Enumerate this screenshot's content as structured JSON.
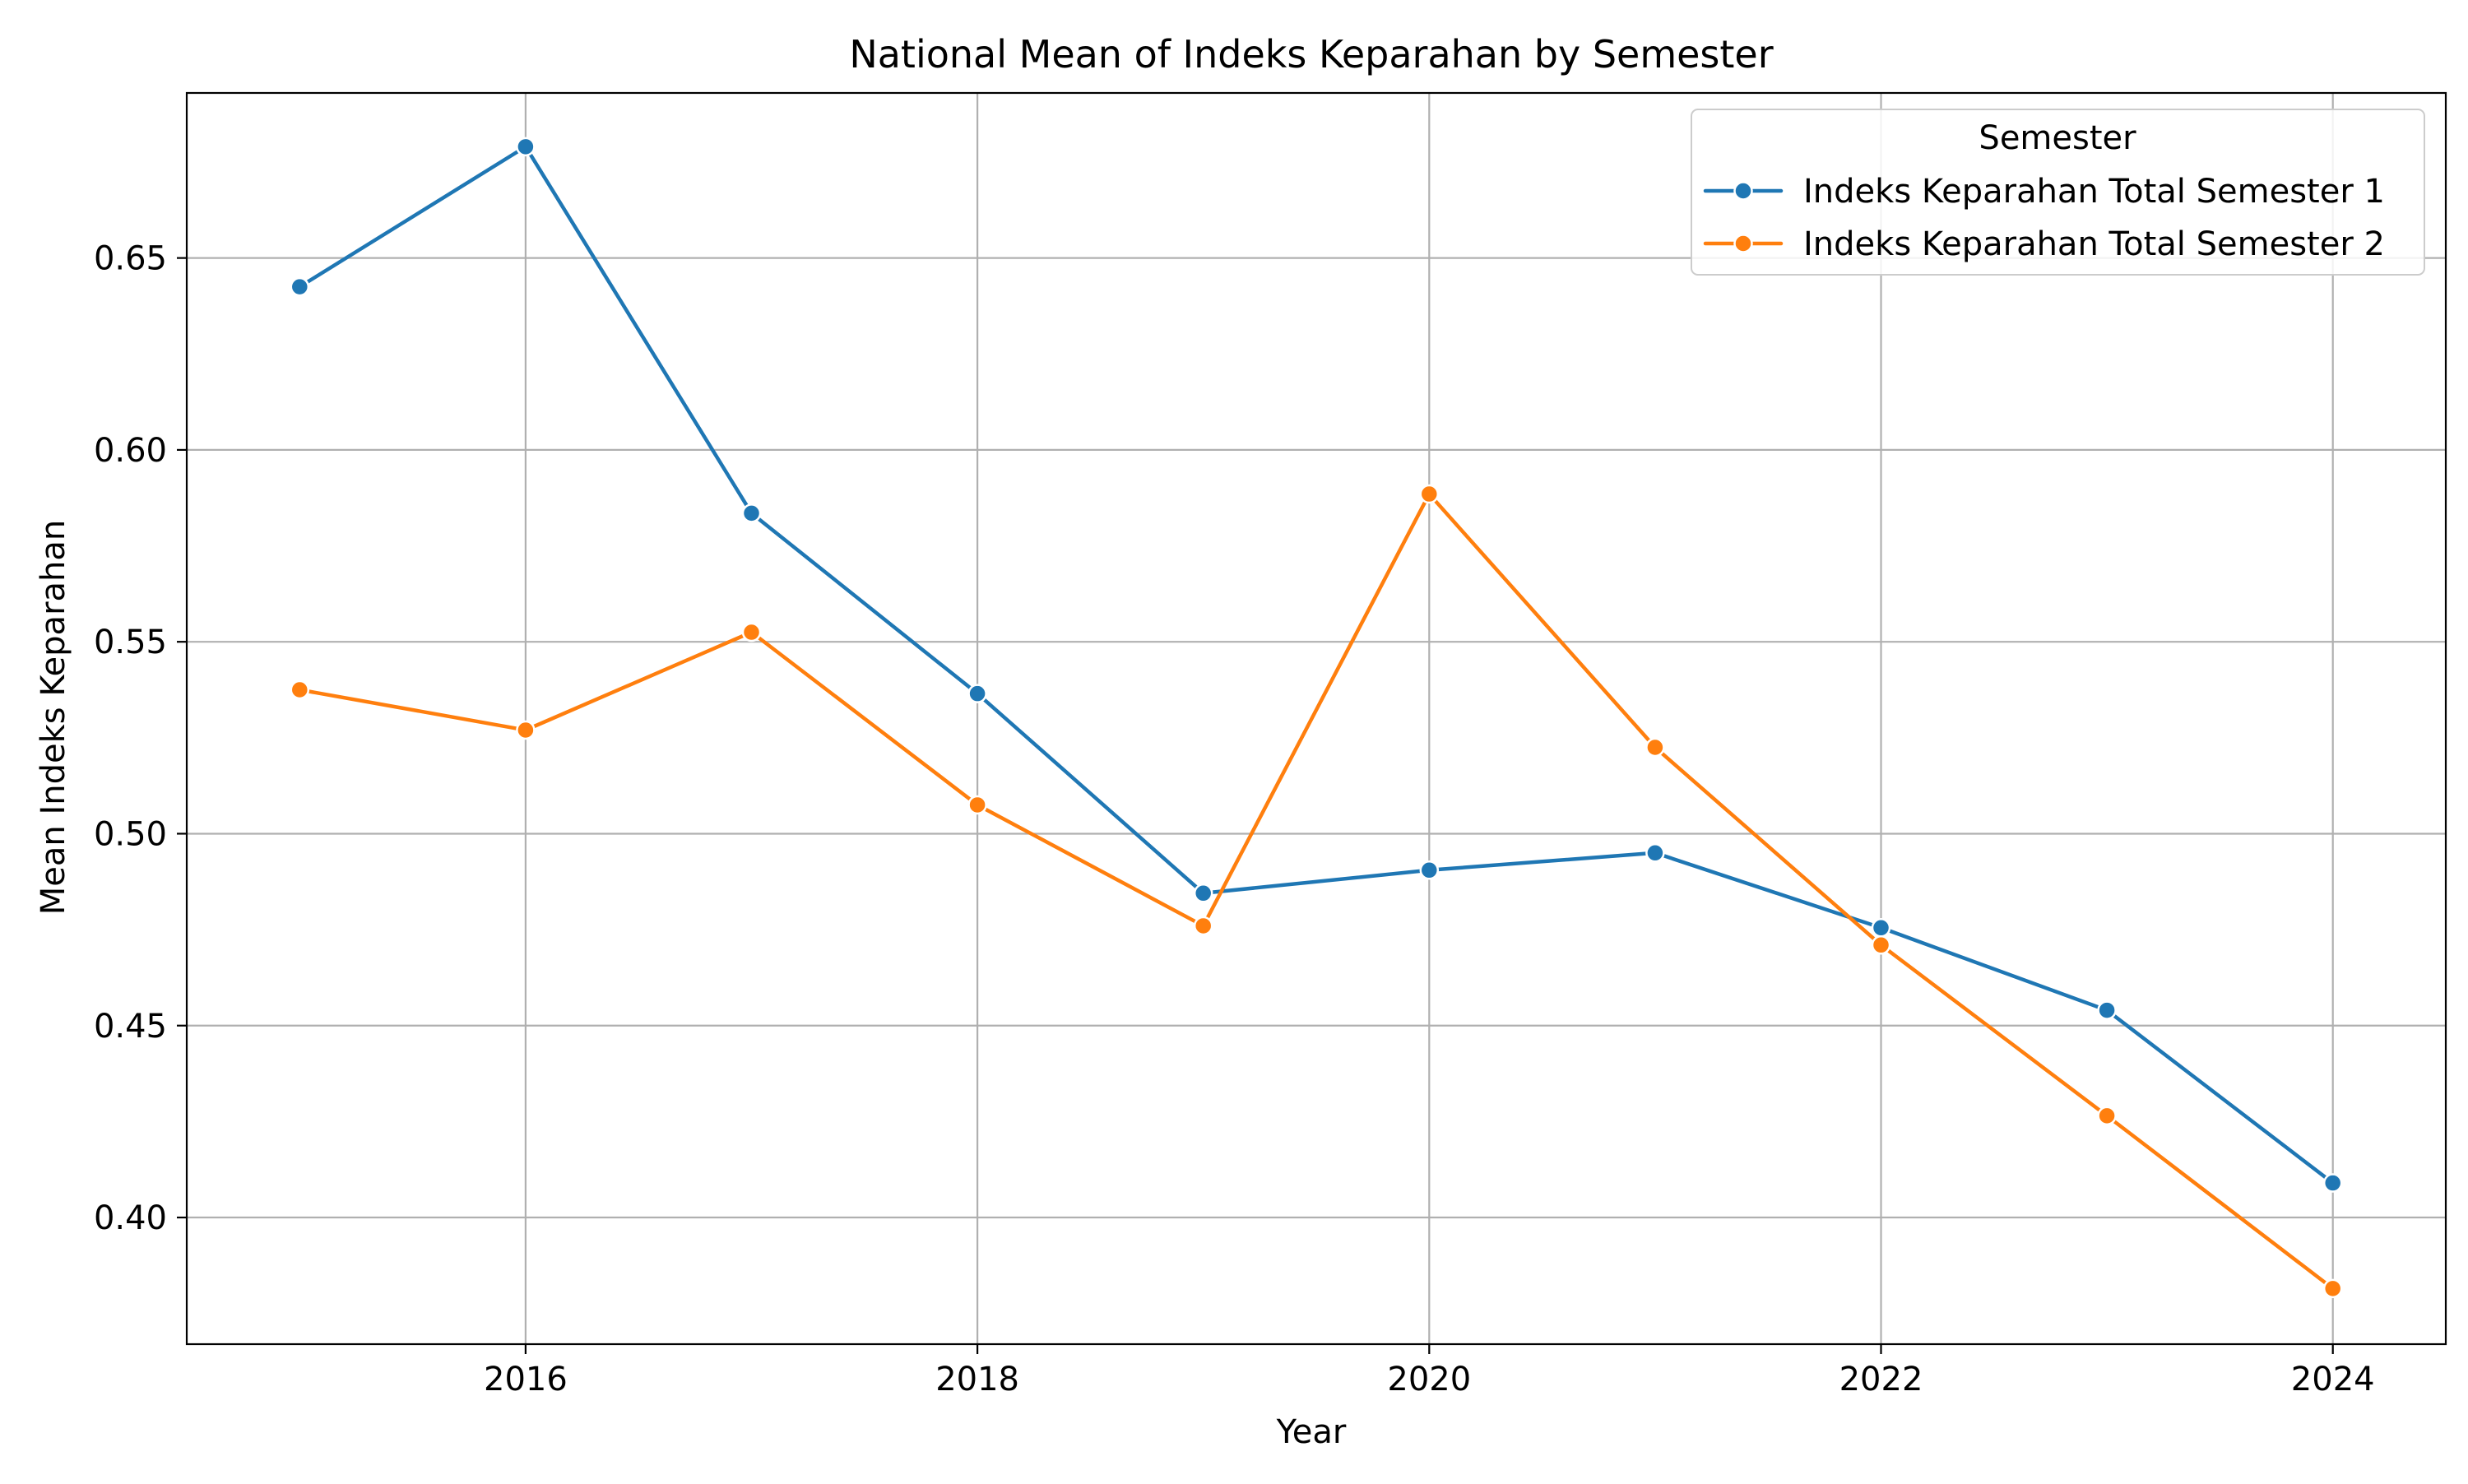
{
  "chart_data": {
    "type": "line",
    "title": "National Mean of Indeks Keparahan by Semester",
    "xlabel": "Year",
    "ylabel": "Mean Indeks Keparahan",
    "x": [
      2015,
      2016,
      2017,
      2018,
      2019,
      2020,
      2021,
      2022,
      2023,
      2024
    ],
    "xlim": [
      2014.5,
      2024.5
    ],
    "ylim": [
      0.367,
      0.693
    ],
    "xticks": [
      2016,
      2018,
      2020,
      2022,
      2024
    ],
    "xtick_labels": [
      "2016",
      "2018",
      "2020",
      "2022",
      "2024"
    ],
    "yticks": [
      0.4,
      0.45,
      0.5,
      0.55,
      0.6,
      0.65
    ],
    "ytick_labels": [
      "0.40",
      "0.45",
      "0.50",
      "0.55",
      "0.60",
      "0.65"
    ],
    "grid": true,
    "legend": {
      "title": "Semester",
      "placement": "top-right"
    },
    "series": [
      {
        "name": "Indeks Keparahan Total Semester 1",
        "color": "#1f77b4",
        "values": [
          0.6425,
          0.679,
          0.5835,
          0.5365,
          0.4845,
          0.4905,
          0.495,
          0.4755,
          0.454,
          0.409
        ]
      },
      {
        "name": "Indeks Keparahan Total Semester 2",
        "color": "#ff7f0e",
        "values": [
          0.5375,
          0.527,
          0.5525,
          0.5075,
          0.476,
          0.5885,
          0.5225,
          0.471,
          0.4265,
          0.3815
        ]
      }
    ]
  }
}
